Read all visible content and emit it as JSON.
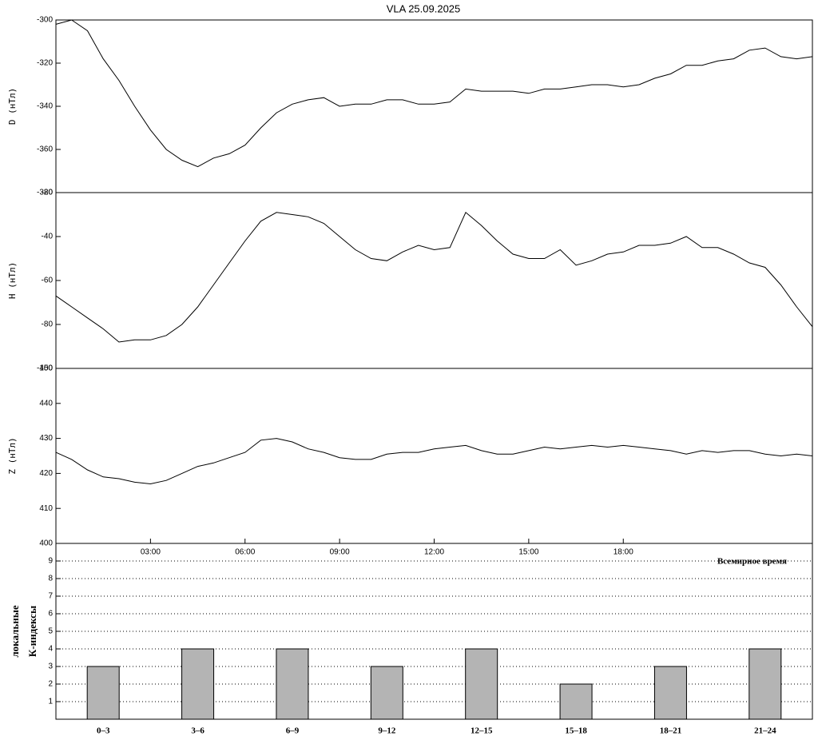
{
  "chart_data": [
    {
      "type": "line",
      "title": "VLA   25.09.2025",
      "ylabel": "D (нТл)",
      "color": "#000000",
      "xlim": [
        0,
        24
      ],
      "ylim": [
        -380,
        -300
      ],
      "yticks": [
        -300,
        -320,
        -340,
        -360,
        -380
      ],
      "x": [
        0,
        0.5,
        1,
        1.5,
        2,
        2.5,
        3,
        3.5,
        4,
        4.5,
        5,
        5.5,
        6,
        6.5,
        7,
        7.5,
        8,
        8.5,
        9,
        9.5,
        10,
        10.5,
        11,
        11.5,
        12,
        12.5,
        13,
        13.5,
        14,
        14.5,
        15,
        15.5,
        16,
        16.5,
        17,
        17.5,
        18,
        18.5,
        19,
        19.5,
        20,
        20.5,
        21,
        21.5,
        22,
        22.5,
        23,
        23.5,
        24
      ],
      "values": [
        -302,
        -300,
        -305,
        -318,
        -328,
        -340,
        -351,
        -360,
        -365,
        -368,
        -364,
        -362,
        -358,
        -350,
        -343,
        -339,
        -337,
        -336,
        -340,
        -339,
        -339,
        -337,
        -337,
        -339,
        -339,
        -338,
        -332,
        -333,
        -333,
        -333,
        -334,
        -332,
        -332,
        -331,
        -330,
        -330,
        -331,
        -330,
        -327,
        -325,
        -321,
        -321,
        -319,
        -318,
        -314,
        -313,
        -317,
        -318,
        -317
      ]
    },
    {
      "type": "line",
      "ylabel": "H (нТл)",
      "color": "#000000",
      "xlim": [
        0,
        24
      ],
      "ylim": [
        -100,
        -20
      ],
      "yticks": [
        -20,
        -40,
        -60,
        -80,
        -100
      ],
      "x": [
        0,
        0.5,
        1,
        1.5,
        2,
        2.5,
        3,
        3.5,
        4,
        4.5,
        5,
        5.5,
        6,
        6.5,
        7,
        7.5,
        8,
        8.5,
        9,
        9.5,
        10,
        10.5,
        11,
        11.5,
        12,
        12.5,
        13,
        13.5,
        14,
        14.5,
        15,
        15.5,
        16,
        16.5,
        17,
        17.5,
        18,
        18.5,
        19,
        19.5,
        20,
        20.5,
        21,
        21.5,
        22,
        22.5,
        23,
        23.5,
        24
      ],
      "values": [
        -67,
        -72,
        -77,
        -82,
        -88,
        -87,
        -87,
        -85,
        -80,
        -72,
        -62,
        -52,
        -42,
        -33,
        -29,
        -30,
        -31,
        -34,
        -40,
        -46,
        -50,
        -51,
        -47,
        -44,
        -46,
        -45,
        -29,
        -35,
        -42,
        -48,
        -50,
        -50,
        -46,
        -53,
        -51,
        -48,
        -47,
        -44,
        -44,
        -43,
        -40,
        -45,
        -45,
        -48,
        -52,
        -54,
        -62,
        -72,
        -81
      ]
    },
    {
      "type": "line",
      "ylabel": "Z (нТл)",
      "xlabel": "Всемирное время",
      "color": "#000000",
      "xlim": [
        0,
        24
      ],
      "ylim": [
        400,
        450
      ],
      "yticks": [
        400,
        410,
        420,
        430,
        440,
        450
      ],
      "xticks": [
        {
          "value": 3,
          "label": "03:00"
        },
        {
          "value": 6,
          "label": "06:00"
        },
        {
          "value": 9,
          "label": "09:00"
        },
        {
          "value": 12,
          "label": "12:00"
        },
        {
          "value": 15,
          "label": "15:00"
        },
        {
          "value": 18,
          "label": "18:00"
        }
      ],
      "x": [
        0,
        0.5,
        1,
        1.5,
        2,
        2.5,
        3,
        3.5,
        4,
        4.5,
        5,
        5.5,
        6,
        6.5,
        7,
        7.5,
        8,
        8.5,
        9,
        9.5,
        10,
        10.5,
        11,
        11.5,
        12,
        12.5,
        13,
        13.5,
        14,
        14.5,
        15,
        15.5,
        16,
        16.5,
        17,
        17.5,
        18,
        18.5,
        19,
        19.5,
        20,
        20.5,
        21,
        21.5,
        22,
        22.5,
        23,
        23.5,
        24
      ],
      "values": [
        426,
        424,
        421,
        419,
        418.5,
        417.5,
        417,
        418,
        420,
        422,
        423,
        424.5,
        426,
        429.5,
        430,
        429,
        427,
        426,
        424.5,
        424,
        424,
        425.5,
        426,
        426,
        427,
        427.5,
        428,
        426.5,
        425.5,
        425.5,
        426.5,
        427.5,
        427,
        427.5,
        428,
        427.5,
        428,
        427.5,
        427,
        426.5,
        425.5,
        426.5,
        426,
        426.5,
        426.5,
        425.5,
        425,
        425.5,
        425
      ]
    },
    {
      "type": "bar",
      "ylabel_lines": [
        "локальные",
        "К-индексы"
      ],
      "color": "#b4b4b4",
      "grid": true,
      "ylim": [
        0,
        10
      ],
      "yticks": [
        1,
        2,
        3,
        4,
        5,
        6,
        7,
        8,
        9
      ],
      "categories": [
        "0–3",
        "3–6",
        "6–9",
        "9–12",
        "12–15",
        "15–18",
        "18–21",
        "21–24"
      ],
      "values": [
        3,
        4,
        4,
        3,
        4,
        2,
        3,
        4
      ]
    }
  ]
}
